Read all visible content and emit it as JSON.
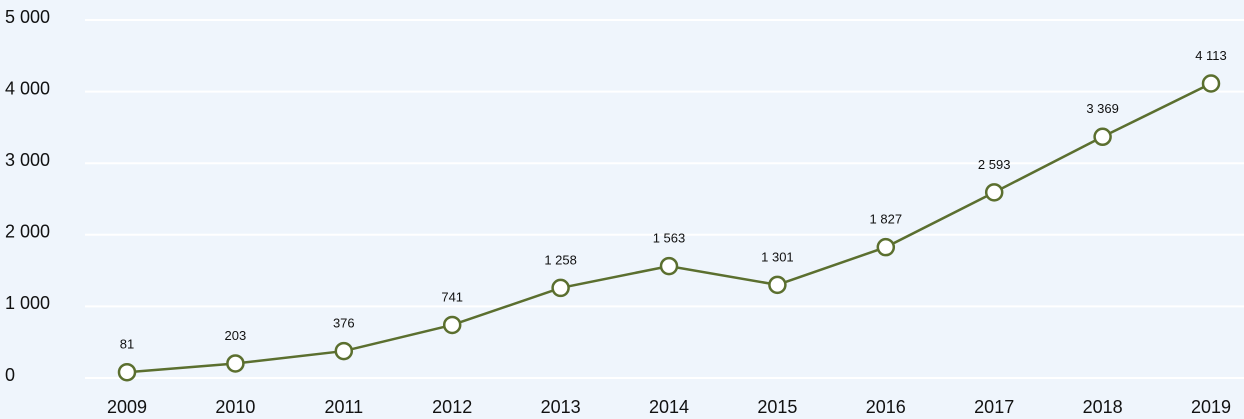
{
  "chart_data": {
    "type": "line",
    "categories": [
      "2009",
      "2010",
      "2011",
      "2012",
      "2013",
      "2014",
      "2015",
      "2016",
      "2017",
      "2018",
      "2019"
    ],
    "series": [
      {
        "color": "#5b6f2f",
        "values": [
          81,
          203,
          376,
          741,
          1258,
          1563,
          1301,
          1827,
          2593,
          3369,
          4113
        ],
        "value_labels": [
          "81",
          "203",
          "376",
          "741",
          "1 258",
          "1 563",
          "1 301",
          "1 827",
          "2 593",
          "3 369",
          "4 113"
        ]
      }
    ],
    "ylim": [
      0,
      5000
    ],
    "yticks": [
      0,
      {
        "value": 1000,
        "label": "1 000"
      },
      {
        "value": 2000,
        "label": "2 000"
      },
      {
        "value": 3000,
        "label": "3 000"
      },
      {
        "value": 4000,
        "label": "4 000"
      },
      {
        "value": 5000,
        "label": "5 000"
      }
    ],
    "grid": true
  }
}
